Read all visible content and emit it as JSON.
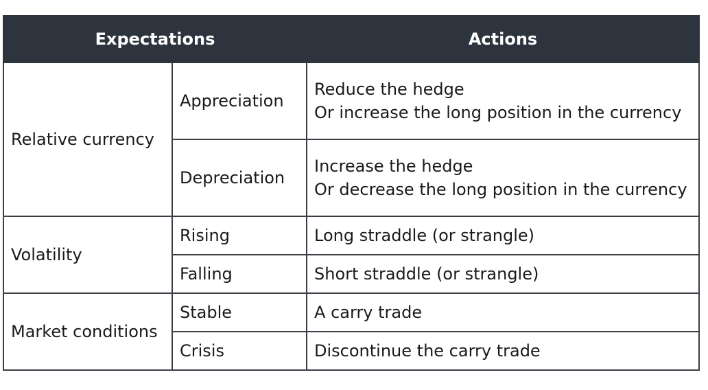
{
  "table": {
    "headers": {
      "expectations": "Expectations",
      "actions": "Actions"
    },
    "groups": [
      {
        "category": "Relative currency",
        "rows": [
          {
            "expectation": "Appreciation",
            "action_lines": [
              "Reduce the hedge",
              "Or increase the long position in the currency"
            ]
          },
          {
            "expectation": "Depreciation",
            "action_lines": [
              "Increase the hedge",
              "Or decrease the long position in the currency"
            ]
          }
        ]
      },
      {
        "category": "Volatility",
        "rows": [
          {
            "expectation": "Rising",
            "action_lines": [
              "Long straddle (or strangle)"
            ]
          },
          {
            "expectation": "Falling",
            "action_lines": [
              "Short straddle (or strangle)"
            ]
          }
        ]
      },
      {
        "category": "Market conditions",
        "rows": [
          {
            "expectation": "Stable",
            "action_lines": [
              "A carry trade"
            ]
          },
          {
            "expectation": "Crisis",
            "action_lines": [
              "Discontinue the carry trade"
            ]
          }
        ]
      }
    ]
  }
}
